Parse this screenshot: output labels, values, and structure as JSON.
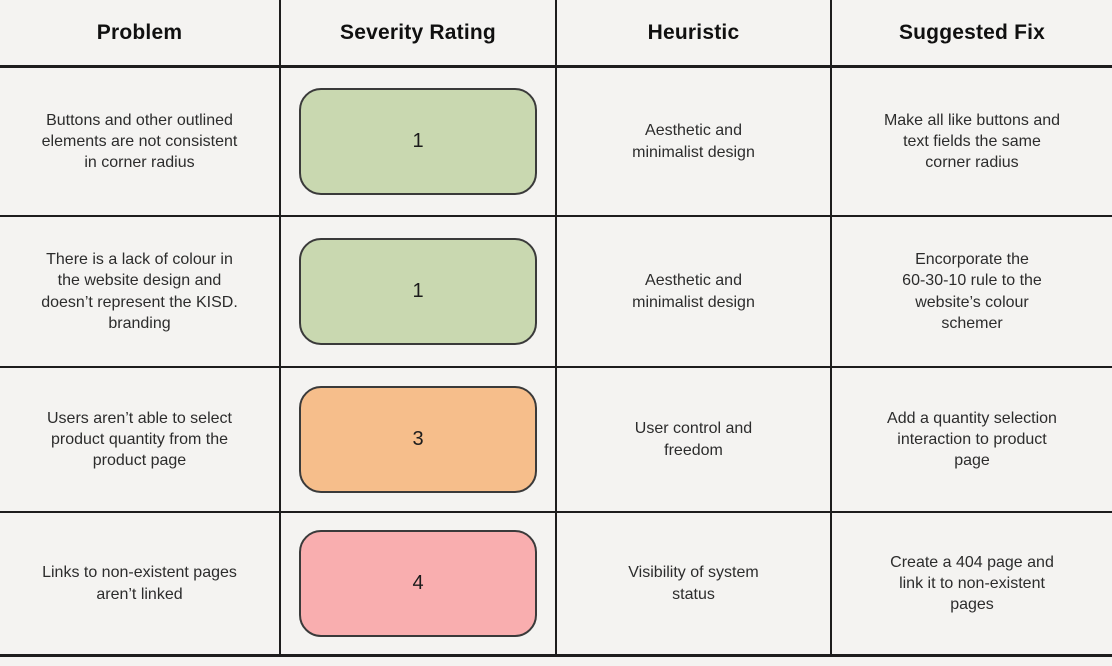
{
  "table": {
    "columns": [
      {
        "label": "Problem"
      },
      {
        "label": "Severity Rating"
      },
      {
        "label": "Heuristic"
      },
      {
        "label": "Suggested Fix"
      }
    ],
    "rows": [
      {
        "problem": "Buttons and other outlined\nelements are not consistent\nin corner radius",
        "severity": "1",
        "severity_color": "#c9d8b0",
        "heuristic": "Aesthetic and\nminimalist design",
        "fix": "Make all like buttons and\ntext fields the same\ncorner radius"
      },
      {
        "problem": "There is a lack of colour in\nthe website design and\ndoesn’t represent the KISD.\nbranding",
        "severity": "1",
        "severity_color": "#c9d8b0",
        "heuristic": "Aesthetic and\nminimalist design",
        "fix": "Encorporate the\n60-30-10 rule to the\nwebsite’s colour\nschemer"
      },
      {
        "problem": "Users aren’t able to select\nproduct quantity from the\nproduct page",
        "severity": "3",
        "severity_color": "#f6be8b",
        "heuristic": "User control and\nfreedom",
        "fix": "Add a quantity selection\ninteraction to product\npage"
      },
      {
        "problem": "Links to non-existent pages\naren’t linked",
        "severity": "4",
        "severity_color": "#f9aeaf",
        "heuristic": "Visibility of system\nstatus",
        "fix": "Create a 404 page and\nlink it to non-existent\npages"
      }
    ]
  },
  "colors": {
    "background": "#f4f3f1",
    "line": "#1d1d1d",
    "severity_low": "#c9d8b0",
    "severity_medium": "#f6be8b",
    "severity_high": "#f9aeaf"
  }
}
